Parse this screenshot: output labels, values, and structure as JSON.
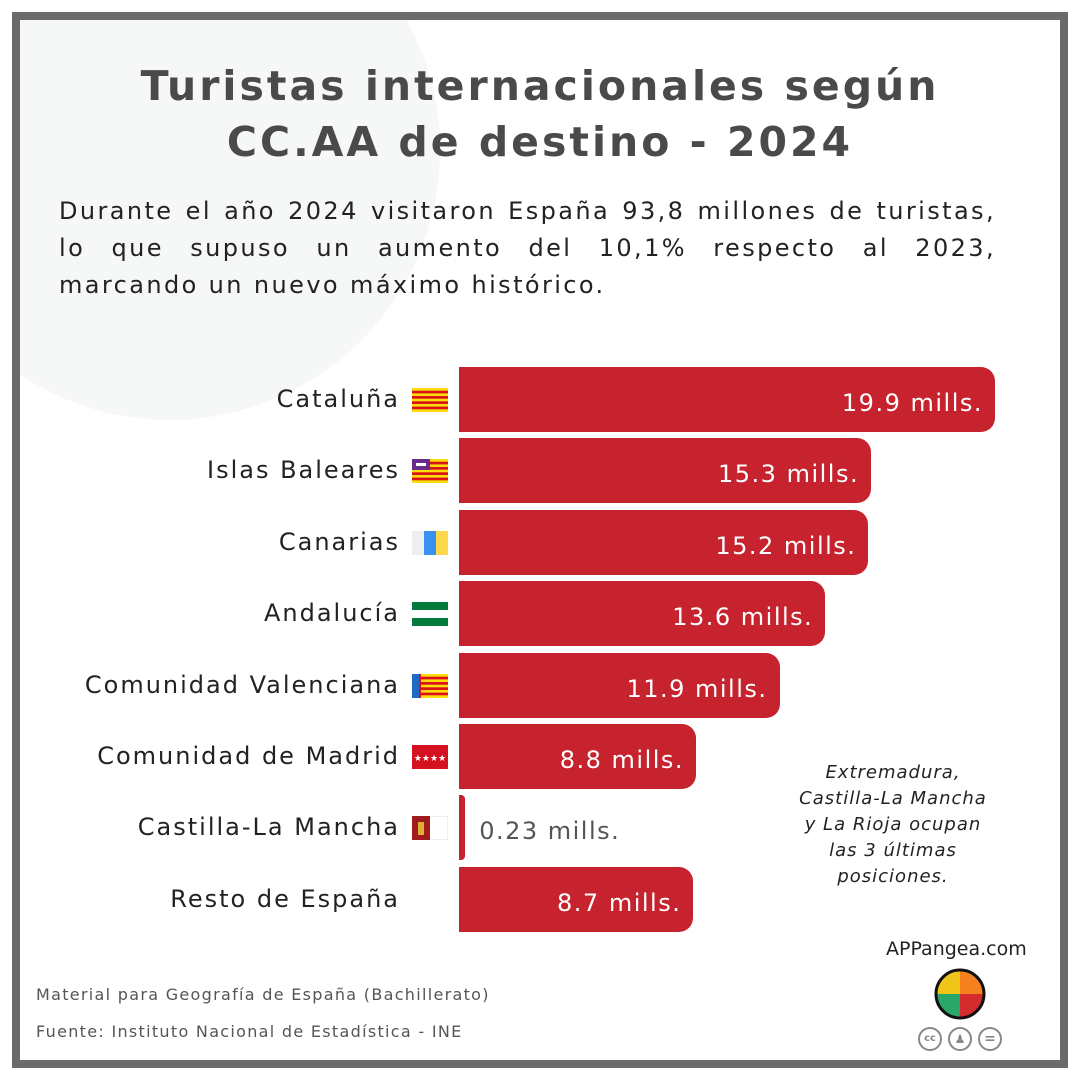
{
  "header": {
    "title_line1": "Turistas internacionales según",
    "title_line2": "CC.AA de destino - 2024",
    "description": "Durante el año 2024 visitaron España 93,8 millones de turistas, lo que supuso un aumento del 10,1% respecto al 2023, marcando un nuevo máximo histórico."
  },
  "chart_data": {
    "type": "bar",
    "orientation": "horizontal",
    "categories": [
      "Cataluña",
      "Islas Baleares",
      "Canarias",
      "Andalucía",
      "Comunidad Valenciana",
      "Comunidad de Madrid",
      "Castilla-La Mancha",
      "Resto de España"
    ],
    "values": [
      19.9,
      15.3,
      15.2,
      13.6,
      11.9,
      8.8,
      0.23,
      8.7
    ],
    "labels": [
      "19.9 mills.",
      "15.3 mills.",
      "15.2 mills.",
      "13.6 mills.",
      "11.9 mills.",
      "8.8 mills.",
      "0.23 mills.",
      "8.7 mills."
    ],
    "flags": [
      "cataluna-flag",
      "baleares-flag",
      "canarias-flag",
      "andalucia-flag",
      "valencia-flag",
      "madrid-flag",
      "castilla-la-mancha-flag",
      ""
    ],
    "bar_color": "#c6232e",
    "unit": "millones",
    "grid": false
  },
  "note": {
    "lines": [
      "Extremadura,",
      "Castilla-La Mancha",
      "y La Rioja ocupan",
      "las 3 últimas",
      "posiciones."
    ]
  },
  "footer": {
    "material": "Material para Geografía de España (Bachillerato)",
    "source": "Fuente: Instituto Nacional de Estadística - INE",
    "brand": "APPangea.com",
    "cc_labels": [
      "cc",
      "by",
      "="
    ]
  }
}
